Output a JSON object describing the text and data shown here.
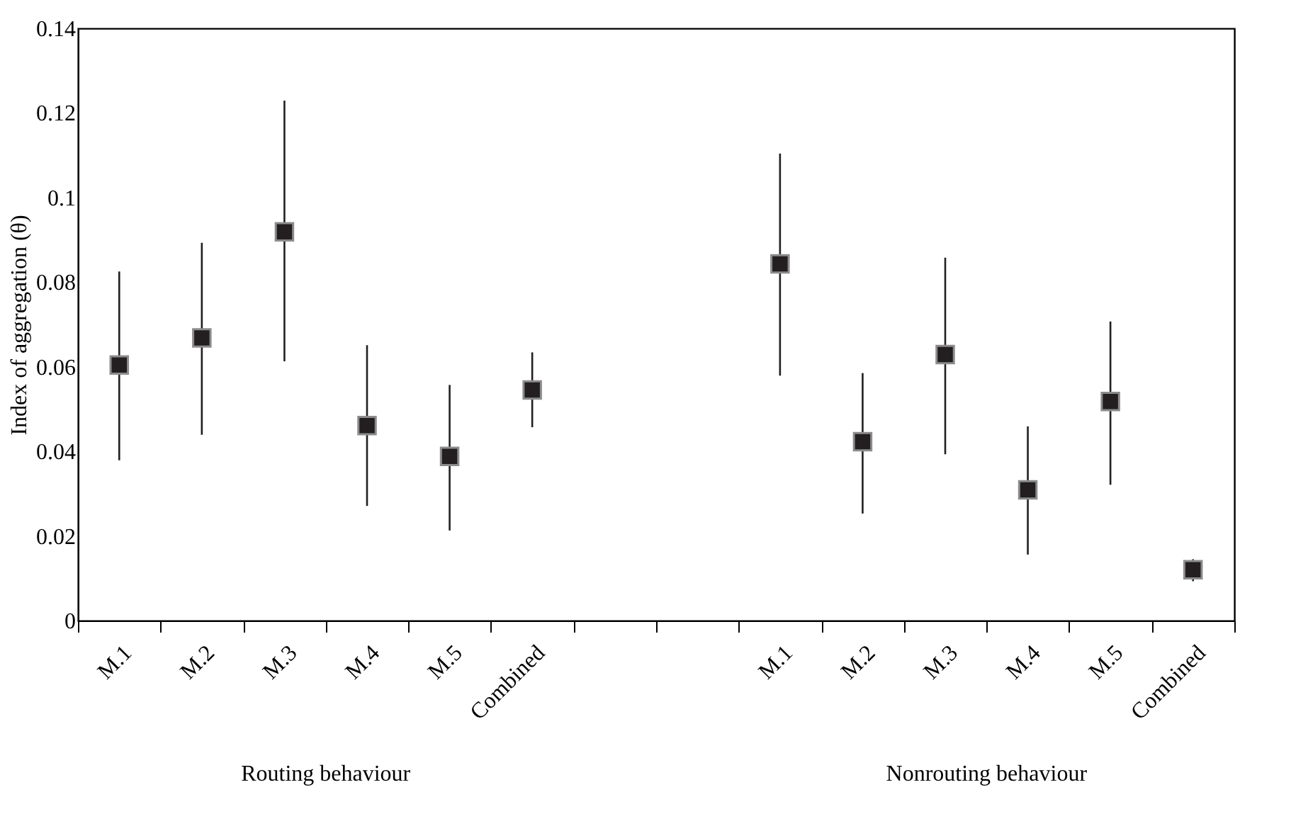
{
  "chart_data": {
    "type": "scatter",
    "ylabel": "Index of aggregation (θ)",
    "categories": [
      "M.1",
      "M.2",
      "M.3",
      "M.4",
      "M.5",
      "Combined",
      null,
      null,
      "M.1",
      "M.2",
      "M.3",
      "M.4",
      "M.5",
      "Combined"
    ],
    "values": [
      0.0604,
      0.0668,
      0.0919,
      0.0461,
      0.0388,
      0.0545,
      null,
      null,
      0.0843,
      0.0423,
      0.0629,
      0.0309,
      0.0518,
      0.012
    ],
    "errors": [
      [
        0.0379,
        0.0825
      ],
      [
        0.0439,
        0.0893
      ],
      [
        0.0613,
        0.1229
      ],
      [
        0.0271,
        0.0651
      ],
      [
        0.0213,
        0.0557
      ],
      [
        0.0457,
        0.0634
      ],
      null,
      null,
      [
        0.0579,
        0.1104
      ],
      [
        0.0253,
        0.0585
      ],
      [
        0.0393,
        0.0858
      ],
      [
        0.0156,
        0.0459
      ],
      [
        0.0321,
        0.0707
      ],
      [
        0.0093,
        0.0145
      ]
    ],
    "color": "#231f20",
    "marker": "square",
    "ylim": [
      0,
      0.14
    ],
    "yticks": [
      0,
      0.02,
      0.04,
      0.06,
      0.08,
      0.1,
      0.12,
      0.14
    ],
    "grid": false,
    "legend": false,
    "annotations": [
      "Routing behaviour",
      "Nonrouting behaviour"
    ]
  }
}
